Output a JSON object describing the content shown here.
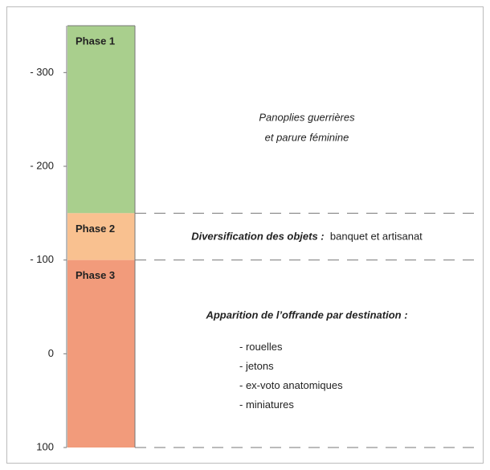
{
  "axis": {
    "range": [
      -350,
      100
    ],
    "ticks": [
      {
        "value": -300,
        "label": "- 300"
      },
      {
        "value": -200,
        "label": "- 200"
      },
      {
        "value": -100,
        "label": "- 100"
      },
      {
        "value": 0,
        "label": "0"
      },
      {
        "value": 100,
        "label": "100"
      }
    ]
  },
  "phases": [
    {
      "name": "Phase 1",
      "start": -350,
      "end": -150,
      "color": "#a9cf8d",
      "description": {
        "lines": [
          "Panoplies guerrières",
          "et parure féminine"
        ]
      }
    },
    {
      "name": "Phase 2",
      "start": -150,
      "end": -100,
      "color": "#f9c190",
      "description": {
        "emphasis": "Diversification des objets :",
        "text": "banquet et artisanat"
      }
    },
    {
      "name": "Phase 3",
      "start": -100,
      "end": 100,
      "color": "#f29b7b",
      "description": {
        "emphasis": "Apparition de l’offrande par destination :",
        "items": [
          "- rouelles",
          "- jetons",
          "- ex-voto anatomiques",
          "- miniatures"
        ]
      }
    }
  ]
}
